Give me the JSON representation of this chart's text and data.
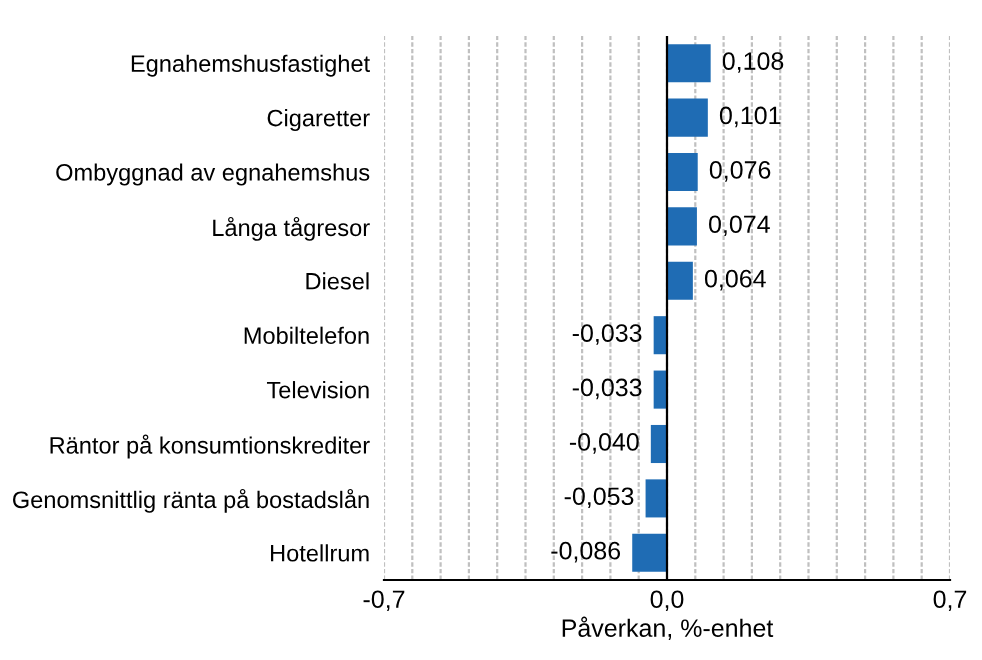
{
  "chart_data": {
    "type": "bar",
    "orientation": "horizontal",
    "categories": [
      "Egnahemshusfastighet",
      "Cigaretter",
      "Ombyggnad av egnahemshus",
      "Långa tågresor",
      "Diesel",
      "Mobiltelefon",
      "Television",
      "Räntor på konsumtionskrediter",
      "Genomsnittlig ränta på bostadslån",
      "Hotellrum"
    ],
    "values": [
      0.108,
      0.101,
      0.076,
      0.074,
      0.064,
      -0.033,
      -0.033,
      -0.04,
      -0.053,
      -0.086
    ],
    "value_labels": [
      "0,108",
      "0,101",
      "0,076",
      "0,074",
      "0,064",
      "-0,033",
      "-0,033",
      "-0,040",
      "-0,053",
      "-0,086"
    ],
    "color": "#1f6cb4",
    "xlabel": "Påverkan, %-enhet",
    "xlim": [
      -0.7,
      0.7
    ],
    "xticks": [
      {
        "value": -0.7,
        "label": "-0,7"
      },
      {
        "value": -0.63,
        "label": null
      },
      {
        "value": -0.56,
        "label": null
      },
      {
        "value": -0.49,
        "label": null
      },
      {
        "value": -0.42,
        "label": null
      },
      {
        "value": -0.35,
        "label": null
      },
      {
        "value": -0.28,
        "label": null
      },
      {
        "value": -0.21,
        "label": null
      },
      {
        "value": -0.14,
        "label": null
      },
      {
        "value": -0.07,
        "label": null
      },
      {
        "value": 0,
        "label": "0,0"
      },
      {
        "value": 0.07,
        "label": null
      },
      {
        "value": 0.14,
        "label": null
      },
      {
        "value": 0.21,
        "label": null
      },
      {
        "value": 0.28,
        "label": null
      },
      {
        "value": 0.35,
        "label": null
      },
      {
        "value": 0.42,
        "label": null
      },
      {
        "value": 0.49,
        "label": null
      },
      {
        "value": 0.56,
        "label": null
      },
      {
        "value": 0.63,
        "label": null
      },
      {
        "value": 0.7,
        "label": "0,7"
      }
    ],
    "grid": "x"
  }
}
